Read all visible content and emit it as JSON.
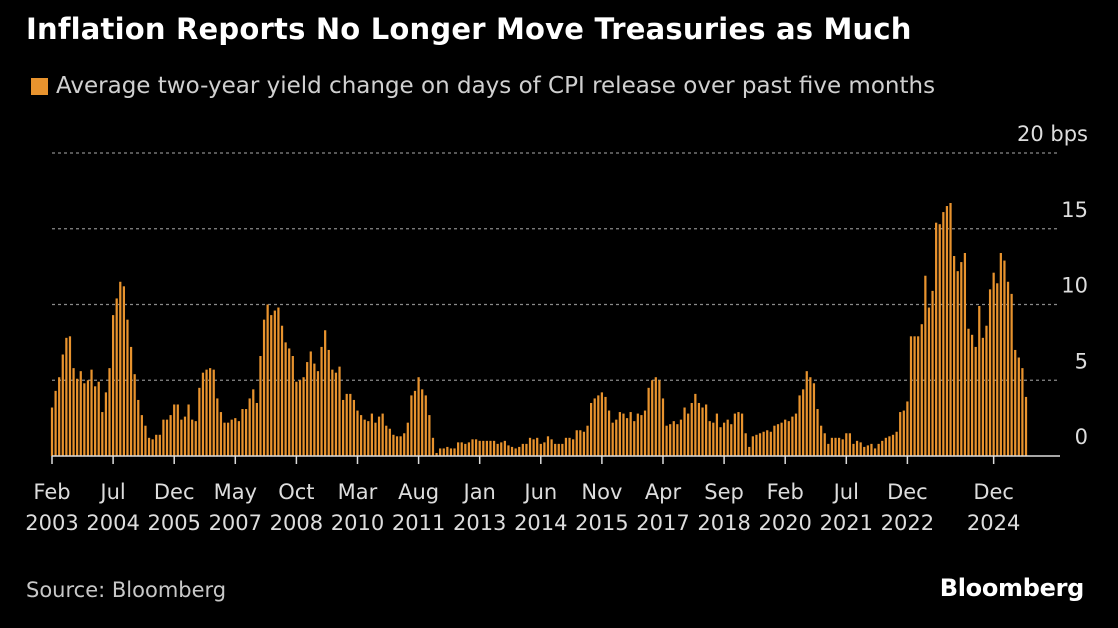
{
  "header": {
    "title": "Inflation Reports No Longer Move Treasuries as Much",
    "legend_label": "Average two-year yield change on days of CPI release over past five months"
  },
  "footer": {
    "source": "Source: Bloomberg",
    "brand": "Bloomberg"
  },
  "colors": {
    "bar": "#e8932e",
    "background": "#000000",
    "grid": "#8a8a8a",
    "axis": "#dddddd",
    "text": "#ffffff"
  },
  "chart_data": {
    "type": "bar",
    "ylim": [
      0,
      20
    ],
    "y_ticks": [
      {
        "value": 20,
        "label": "20 bps"
      },
      {
        "value": 15,
        "label": "15"
      },
      {
        "value": 10,
        "label": "10"
      },
      {
        "value": 5,
        "label": "5"
      },
      {
        "value": 0,
        "label": "0"
      }
    ],
    "x_ticks": [
      {
        "index": 0,
        "month": "Feb",
        "year": "2003"
      },
      {
        "index": 17,
        "month": "Jul",
        "year": "2004"
      },
      {
        "index": 34,
        "month": "Dec",
        "year": "2005"
      },
      {
        "index": 51,
        "month": "May",
        "year": "2007"
      },
      {
        "index": 68,
        "month": "Oct",
        "year": "2008"
      },
      {
        "index": 85,
        "month": "Mar",
        "year": "2010"
      },
      {
        "index": 102,
        "month": "Aug",
        "year": "2011"
      },
      {
        "index": 119,
        "month": "Jan",
        "year": "2013"
      },
      {
        "index": 136,
        "month": "Jun",
        "year": "2014"
      },
      {
        "index": 153,
        "month": "Nov",
        "year": "2015"
      },
      {
        "index": 170,
        "month": "Apr",
        "year": "2017"
      },
      {
        "index": 187,
        "month": "Sep",
        "year": "2018"
      },
      {
        "index": 204,
        "month": "Feb",
        "year": "2020"
      },
      {
        "index": 221,
        "month": "Jul",
        "year": "2021"
      },
      {
        "index": 238,
        "month": "Dec",
        "year": "2022"
      },
      {
        "index": 262,
        "month": "Dec",
        "year": "2024"
      }
    ],
    "values": [
      3.2,
      4.3,
      5.2,
      6.7,
      7.8,
      7.9,
      5.8,
      5.1,
      5.6,
      4.8,
      5.0,
      5.7,
      4.6,
      4.9,
      2.9,
      4.2,
      5.8,
      9.3,
      10.4,
      11.5,
      11.2,
      9.0,
      7.2,
      5.4,
      3.7,
      2.7,
      2.0,
      1.2,
      1.1,
      1.4,
      1.4,
      2.4,
      2.4,
      2.7,
      3.4,
      3.4,
      2.4,
      2.6,
      3.4,
      2.4,
      2.3,
      4.5,
      5.5,
      5.7,
      5.8,
      5.7,
      3.8,
      2.9,
      2.2,
      2.2,
      2.4,
      2.5,
      2.3,
      3.1,
      3.1,
      3.8,
      4.4,
      3.5,
      6.6,
      9.0,
      10.0,
      9.3,
      9.6,
      9.8,
      8.6,
      7.5,
      7.1,
      6.6,
      4.9,
      5.0,
      5.2,
      6.2,
      6.9,
      6.1,
      5.6,
      7.2,
      8.3,
      7.0,
      5.7,
      5.5,
      5.9,
      3.7,
      4.1,
      4.1,
      3.7,
      3.0,
      2.7,
      2.4,
      2.3,
      2.8,
      2.2,
      2.6,
      2.8,
      2.0,
      1.8,
      1.4,
      1.3,
      1.3,
      1.5,
      2.2,
      4.0,
      4.3,
      5.2,
      4.4,
      4.0,
      2.7,
      1.2,
      0.2,
      0.5,
      0.5,
      0.6,
      0.5,
      0.5,
      0.9,
      0.9,
      0.8,
      0.9,
      1.1,
      1.1,
      1.0,
      1.0,
      1.0,
      1.0,
      1.0,
      0.8,
      0.9,
      1.0,
      0.7,
      0.6,
      0.5,
      0.6,
      0.8,
      0.8,
      1.2,
      1.1,
      1.2,
      0.8,
      0.9,
      1.3,
      1.1,
      0.8,
      0.8,
      0.8,
      1.2,
      1.2,
      1.1,
      1.7,
      1.7,
      1.6,
      2.0,
      3.5,
      3.8,
      4.0,
      4.2,
      3.9,
      3.0,
      2.2,
      2.4,
      2.9,
      2.8,
      2.5,
      2.9,
      2.3,
      2.8,
      2.7,
      3.0,
      4.5,
      5.0,
      5.2,
      5.0,
      3.8,
      2.0,
      2.1,
      2.3,
      2.1,
      2.4,
      3.2,
      2.8,
      3.5,
      4.1,
      3.5,
      3.2,
      3.4,
      2.3,
      2.2,
      2.8,
      1.9,
      2.2,
      2.4,
      2.1,
      2.8,
      2.9,
      2.8,
      1.5,
      0.6,
      1.3,
      1.4,
      1.5,
      1.6,
      1.7,
      1.6,
      2.0,
      2.1,
      2.2,
      2.4,
      2.3,
      2.6,
      2.8,
      4.0,
      4.4,
      5.6,
      5.2,
      4.8,
      3.1,
      2.0,
      1.5,
      0.8,
      1.2,
      1.2,
      1.2,
      1.1,
      1.5,
      1.5,
      0.8,
      1.0,
      0.9,
      0.6,
      0.7,
      0.8,
      0.5,
      0.8,
      1.0,
      1.2,
      1.3,
      1.4,
      1.6,
      2.9,
      3.0,
      3.6,
      7.9,
      7.9,
      7.9,
      8.7,
      11.9,
      9.8,
      10.9,
      15.4,
      15.3,
      16.1,
      16.5,
      16.7,
      13.2,
      12.2,
      12.8,
      13.4,
      8.4,
      8.0,
      7.2,
      9.9,
      7.8,
      8.6,
      11.0,
      12.1,
      11.4,
      13.4,
      12.9,
      11.5,
      10.7,
      7.0,
      6.5,
      5.8,
      3.9
    ]
  }
}
